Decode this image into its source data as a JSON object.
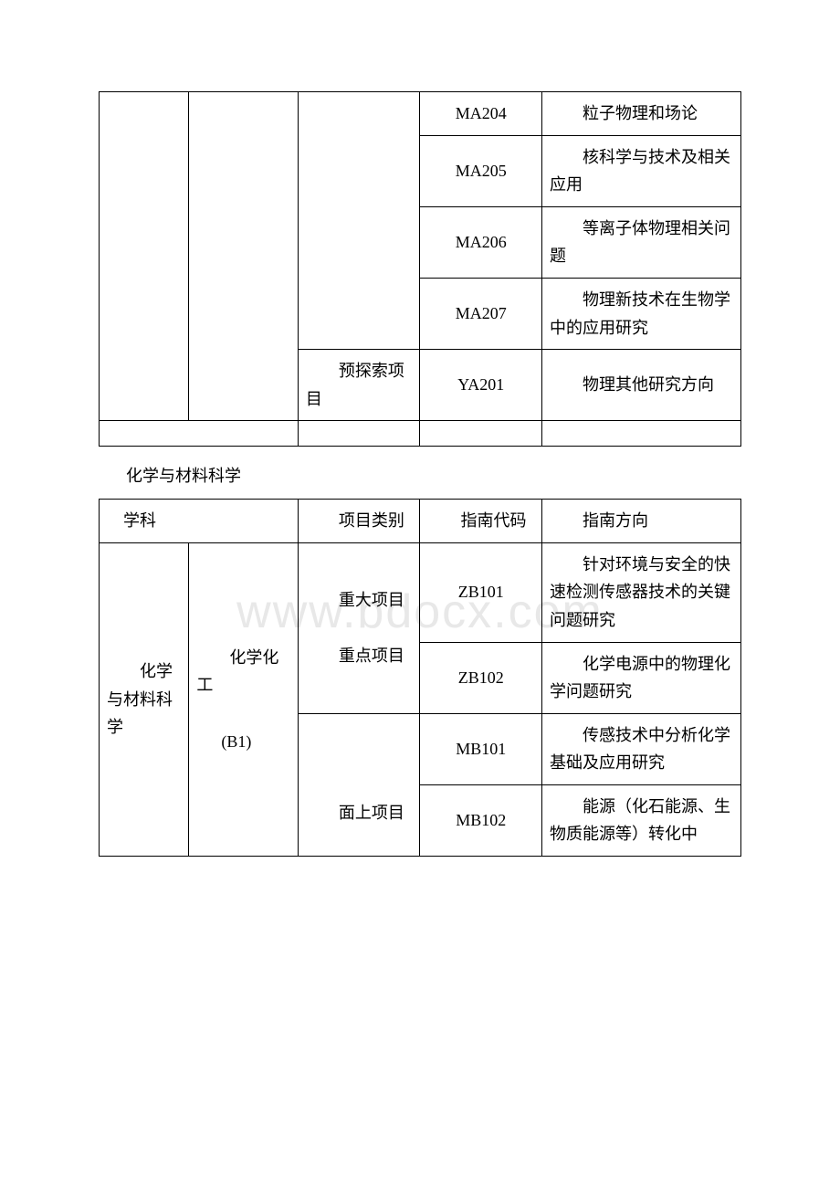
{
  "table1": {
    "rows": [
      {
        "code": "MA204",
        "direction": "　　粒子物理和场论"
      },
      {
        "code": "MA205",
        "direction": "　　核科学与技术及相关应用"
      },
      {
        "code": "MA206",
        "direction": "　　等离子体物理相关问题"
      },
      {
        "code": "MA207",
        "direction": "　　物理新技术在生物学中的应用研究"
      }
    ],
    "pre_explore": {
      "label": "　　预探索项目",
      "code": "YA201",
      "direction": "　　物理其他研究方向"
    }
  },
  "section_title": "化学与材料科学",
  "table2": {
    "headers": {
      "subject": "　学科",
      "type": "　　项目类别",
      "code": "　　指南代码",
      "direction": "　　指南方向"
    },
    "subject_main": "　　化学与材料科学",
    "subject_sub": "　　化学化工",
    "subject_sub_code": "(B1)",
    "type1": "　　重大项目",
    "type2": "　　重点项目",
    "type3": "　　面上项目",
    "rows": [
      {
        "code": "ZB101",
        "direction": "　　针对环境与安全的快速检测传感器技术的关键问题研究"
      },
      {
        "code": "ZB102",
        "direction": "　　化学电源中的物理化学问题研究"
      },
      {
        "code": "MB101",
        "direction": "　　传感技术中分析化学基础及应用研究"
      },
      {
        "code": "MB102",
        "direction": "　　能源（化石能源、生物质能源等）转化中"
      }
    ]
  }
}
